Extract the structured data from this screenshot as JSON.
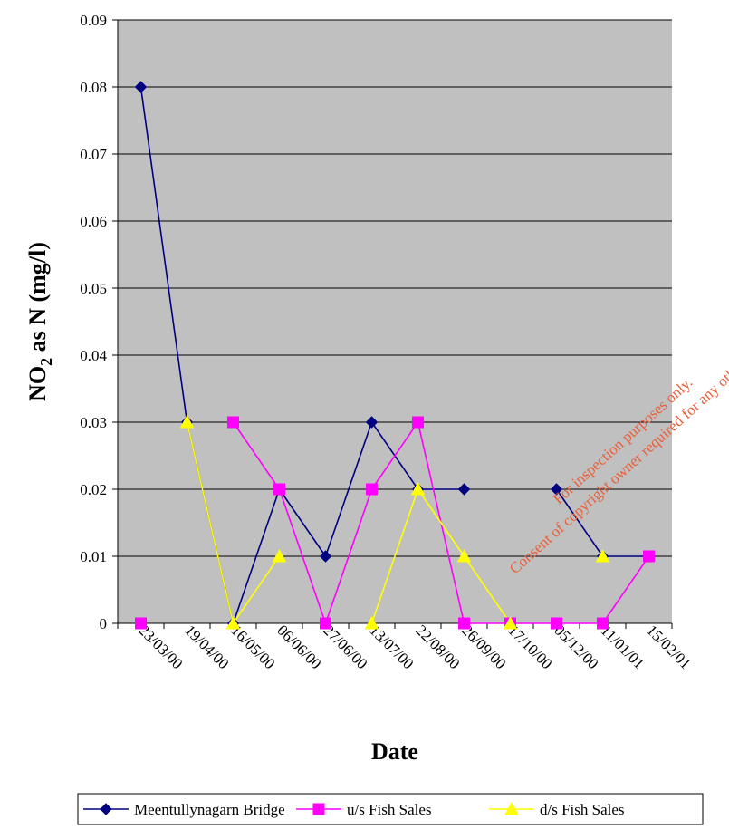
{
  "chart_data": {
    "type": "line",
    "xlabel": "Date",
    "ylabel_main": "NO",
    "ylabel_sub": "2",
    "ylabel_rest": " as N (mg/l)",
    "ylim": [
      0,
      0.09
    ],
    "yticks": [
      "0",
      "0.01",
      "0.02",
      "0.03",
      "0.04",
      "0.05",
      "0.06",
      "0.07",
      "0.08",
      "0.09"
    ],
    "xtick_labels": [
      "23/03/00",
      "19/04/00",
      "16/05/00",
      "06/06/00",
      "27/06/00",
      "13/07/00",
      "22/08/00",
      "26/09/00",
      "17/10/00",
      "05/12/00",
      "11/01/01",
      "15/02/01"
    ],
    "grid": "horizontal",
    "background": "#c0c0c0",
    "legend_position": "bottom",
    "series": [
      {
        "name": "Meentullynagarn Bridge",
        "color": "#000080",
        "marker": "diamond",
        "points": [
          {
            "x": 0,
            "y": 0.08
          },
          {
            "x": 1,
            "y": 0.03
          },
          {
            "x": 2,
            "y": 0
          },
          {
            "x": 3,
            "y": 0.02
          },
          {
            "x": 4,
            "y": 0.01
          },
          {
            "x": 5,
            "y": 0.03
          },
          {
            "x": 6,
            "y": 0.02
          },
          {
            "x": 7,
            "y": 0.02
          },
          {
            "x": 9,
            "y": 0.02
          },
          {
            "x": 10,
            "y": 0.01
          },
          {
            "x": 11,
            "y": 0.01
          }
        ]
      },
      {
        "name": "u/s Fish Sales",
        "color": "#ff00ff",
        "marker": "square",
        "points": [
          {
            "x": 0,
            "y": 0
          },
          {
            "x": 2,
            "y": 0.03
          },
          {
            "x": 3,
            "y": 0.02
          },
          {
            "x": 4,
            "y": 0
          },
          {
            "x": 5,
            "y": 0.02
          },
          {
            "x": 6,
            "y": 0.03
          },
          {
            "x": 7,
            "y": 0
          },
          {
            "x": 8,
            "y": 0
          },
          {
            "x": 9,
            "y": 0
          },
          {
            "x": 10,
            "y": 0
          },
          {
            "x": 11,
            "y": 0.01
          }
        ]
      },
      {
        "name": "d/s Fish Sales",
        "color": "#ffff00",
        "marker": "triangle",
        "points": [
          {
            "x": 1,
            "y": 0.03
          },
          {
            "x": 2,
            "y": 0
          },
          {
            "x": 3,
            "y": 0.01
          },
          {
            "x": 5,
            "y": 0
          },
          {
            "x": 6,
            "y": 0.02
          },
          {
            "x": 7,
            "y": 0.01
          },
          {
            "x": 8,
            "y": 0
          },
          {
            "x": 10,
            "y": 0.01
          }
        ]
      }
    ]
  },
  "watermark": {
    "line1": "For inspection purposes only.",
    "line2": "Consent of copyright owner required for any other use."
  }
}
